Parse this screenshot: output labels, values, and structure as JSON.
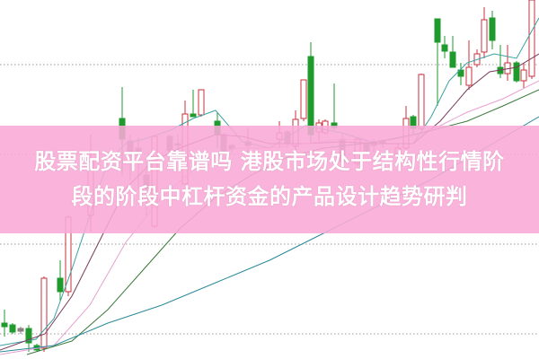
{
  "article": {
    "title_line1": "股票配资平台靠谱吗 港股市场处于结构性行情阶",
    "title_line2": "段的阶段中杠杆资金的产品设计趋势研判"
  },
  "chart_style": {
    "type": "candlestick",
    "up_color": "#c8323c",
    "down_color": "#1f9a2c",
    "neutral_color": "#8a8080",
    "banner_color": "#f9aad7",
    "grid": "dotted"
  }
}
